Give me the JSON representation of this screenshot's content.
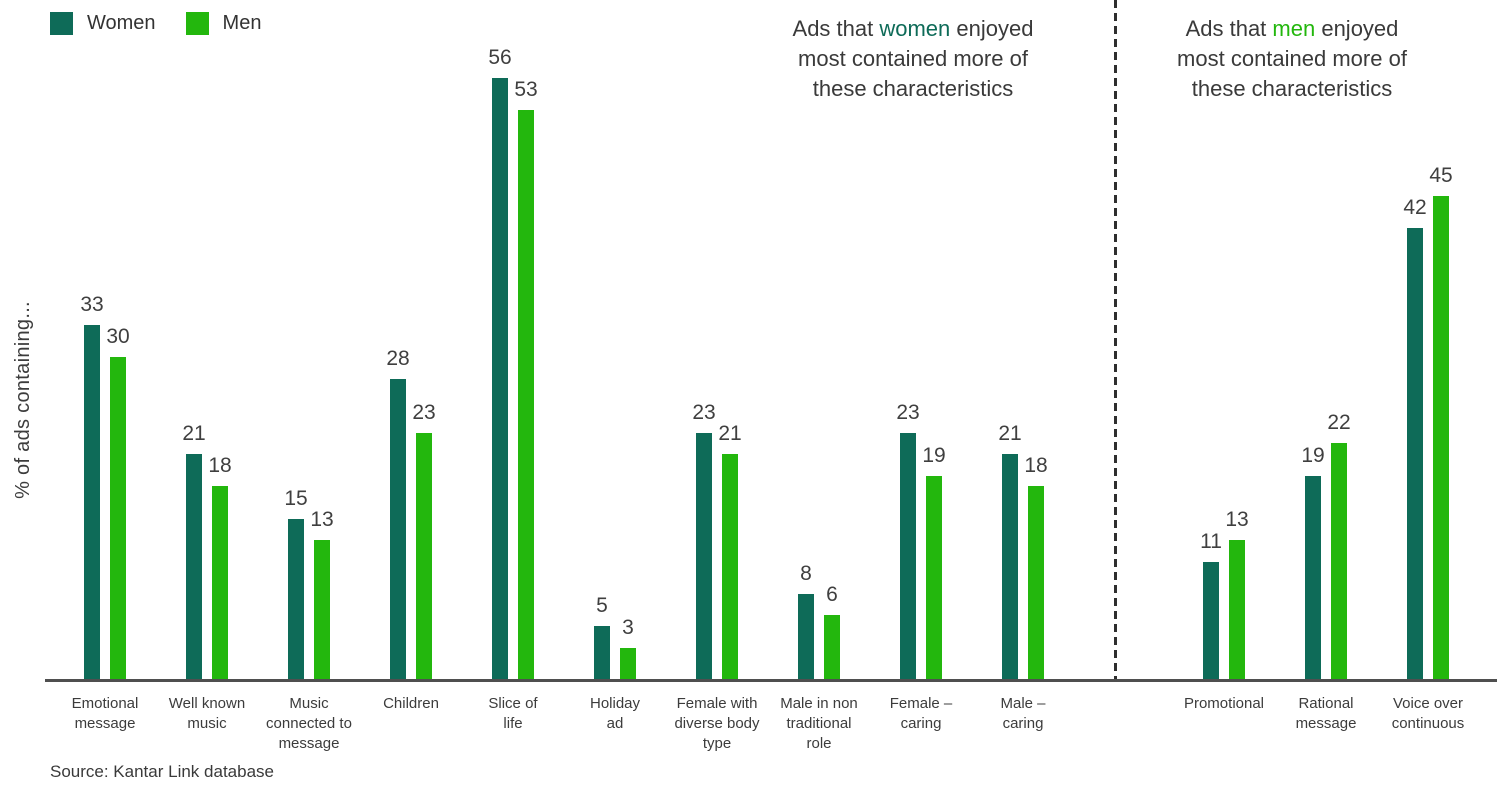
{
  "legend": {
    "items": [
      {
        "label": "Women",
        "color": "#0E6B58"
      },
      {
        "label": "Men",
        "color": "#23B70D"
      }
    ]
  },
  "ylabel": "% of ads containing...",
  "source": "Source: Kantar Link database",
  "annotations": {
    "women": {
      "prefix": "Ads that ",
      "highlight": "women",
      "suffix": " enjoyed most contained more of these characteristics"
    },
    "men": {
      "prefix": "Ads that ",
      "highlight": "men",
      "suffix": " enjoyed most contained more of these characteristics"
    }
  },
  "chart_data": {
    "type": "bar",
    "title": "",
    "xlabel": "",
    "ylabel": "% of ads containing...",
    "ylim": [
      0,
      60
    ],
    "grid": false,
    "value_labels": true,
    "legend_position": "top-left",
    "categories": [
      "Emotional\nmessage",
      "Well known\nmusic",
      "Music\nconnected to\nmessage",
      "Children",
      "Slice of\nlife",
      "Holiday\nad",
      "Female with\ndiverse body\ntype",
      "Male in non\ntraditional\nrole",
      "Female –\ncaring",
      "Male –\ncaring",
      "Promotional",
      "Rational\nmessage",
      "Voice over\ncontinuous"
    ],
    "series": [
      {
        "name": "Women",
        "color": "#0E6B58",
        "values": [
          33,
          21,
          15,
          28,
          56,
          5,
          23,
          8,
          23,
          21,
          11,
          19,
          42
        ]
      },
      {
        "name": "Men",
        "color": "#23B70D",
        "values": [
          30,
          18,
          13,
          23,
          53,
          3,
          21,
          6,
          19,
          18,
          13,
          22,
          45
        ]
      }
    ],
    "sections": [
      {
        "name": "Ads that women enjoyed most contained more of these characteristics",
        "category_indexes": [
          0,
          1,
          2,
          3,
          4,
          5,
          6,
          7,
          8,
          9
        ]
      },
      {
        "name": "Ads that men enjoyed most contained more of these characteristics",
        "category_indexes": [
          10,
          11,
          12
        ]
      }
    ],
    "divider_after_category_index": 9
  }
}
